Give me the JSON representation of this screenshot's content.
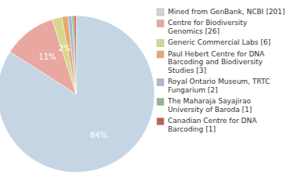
{
  "chart_data": {
    "type": "pie",
    "categories": [
      "Mined from GenBank, NCBI [201]",
      "Centre for Biodiversity\nGenomics [26]",
      "Generic Commercial Labs [6]",
      "Paul Hebert Centre for DNA\nBarcoding and Biodiversity\nStudies [3]",
      "Royal Ontario Museum, TRTC\nFungarium [2]",
      "The Maharaja Sayajirao\nUniversity of Baroda [1]",
      "Canadian Centre for DNA\nBarcoding [1]"
    ],
    "values": [
      84,
      11,
      2,
      1.25,
      0.8333333333333334,
      0.4166666666666667,
      0.4166666666666667
    ],
    "value_labels": [
      "84%",
      "11%",
      "2%",
      null,
      null,
      null,
      null
    ],
    "data_labels": true,
    "colors": [
      "#c5d5e4",
      "#e8a8a0",
      "#d4d88a",
      "#e8a870",
      "#a8b8d0",
      "#8db88a",
      "#c06050"
    ]
  }
}
